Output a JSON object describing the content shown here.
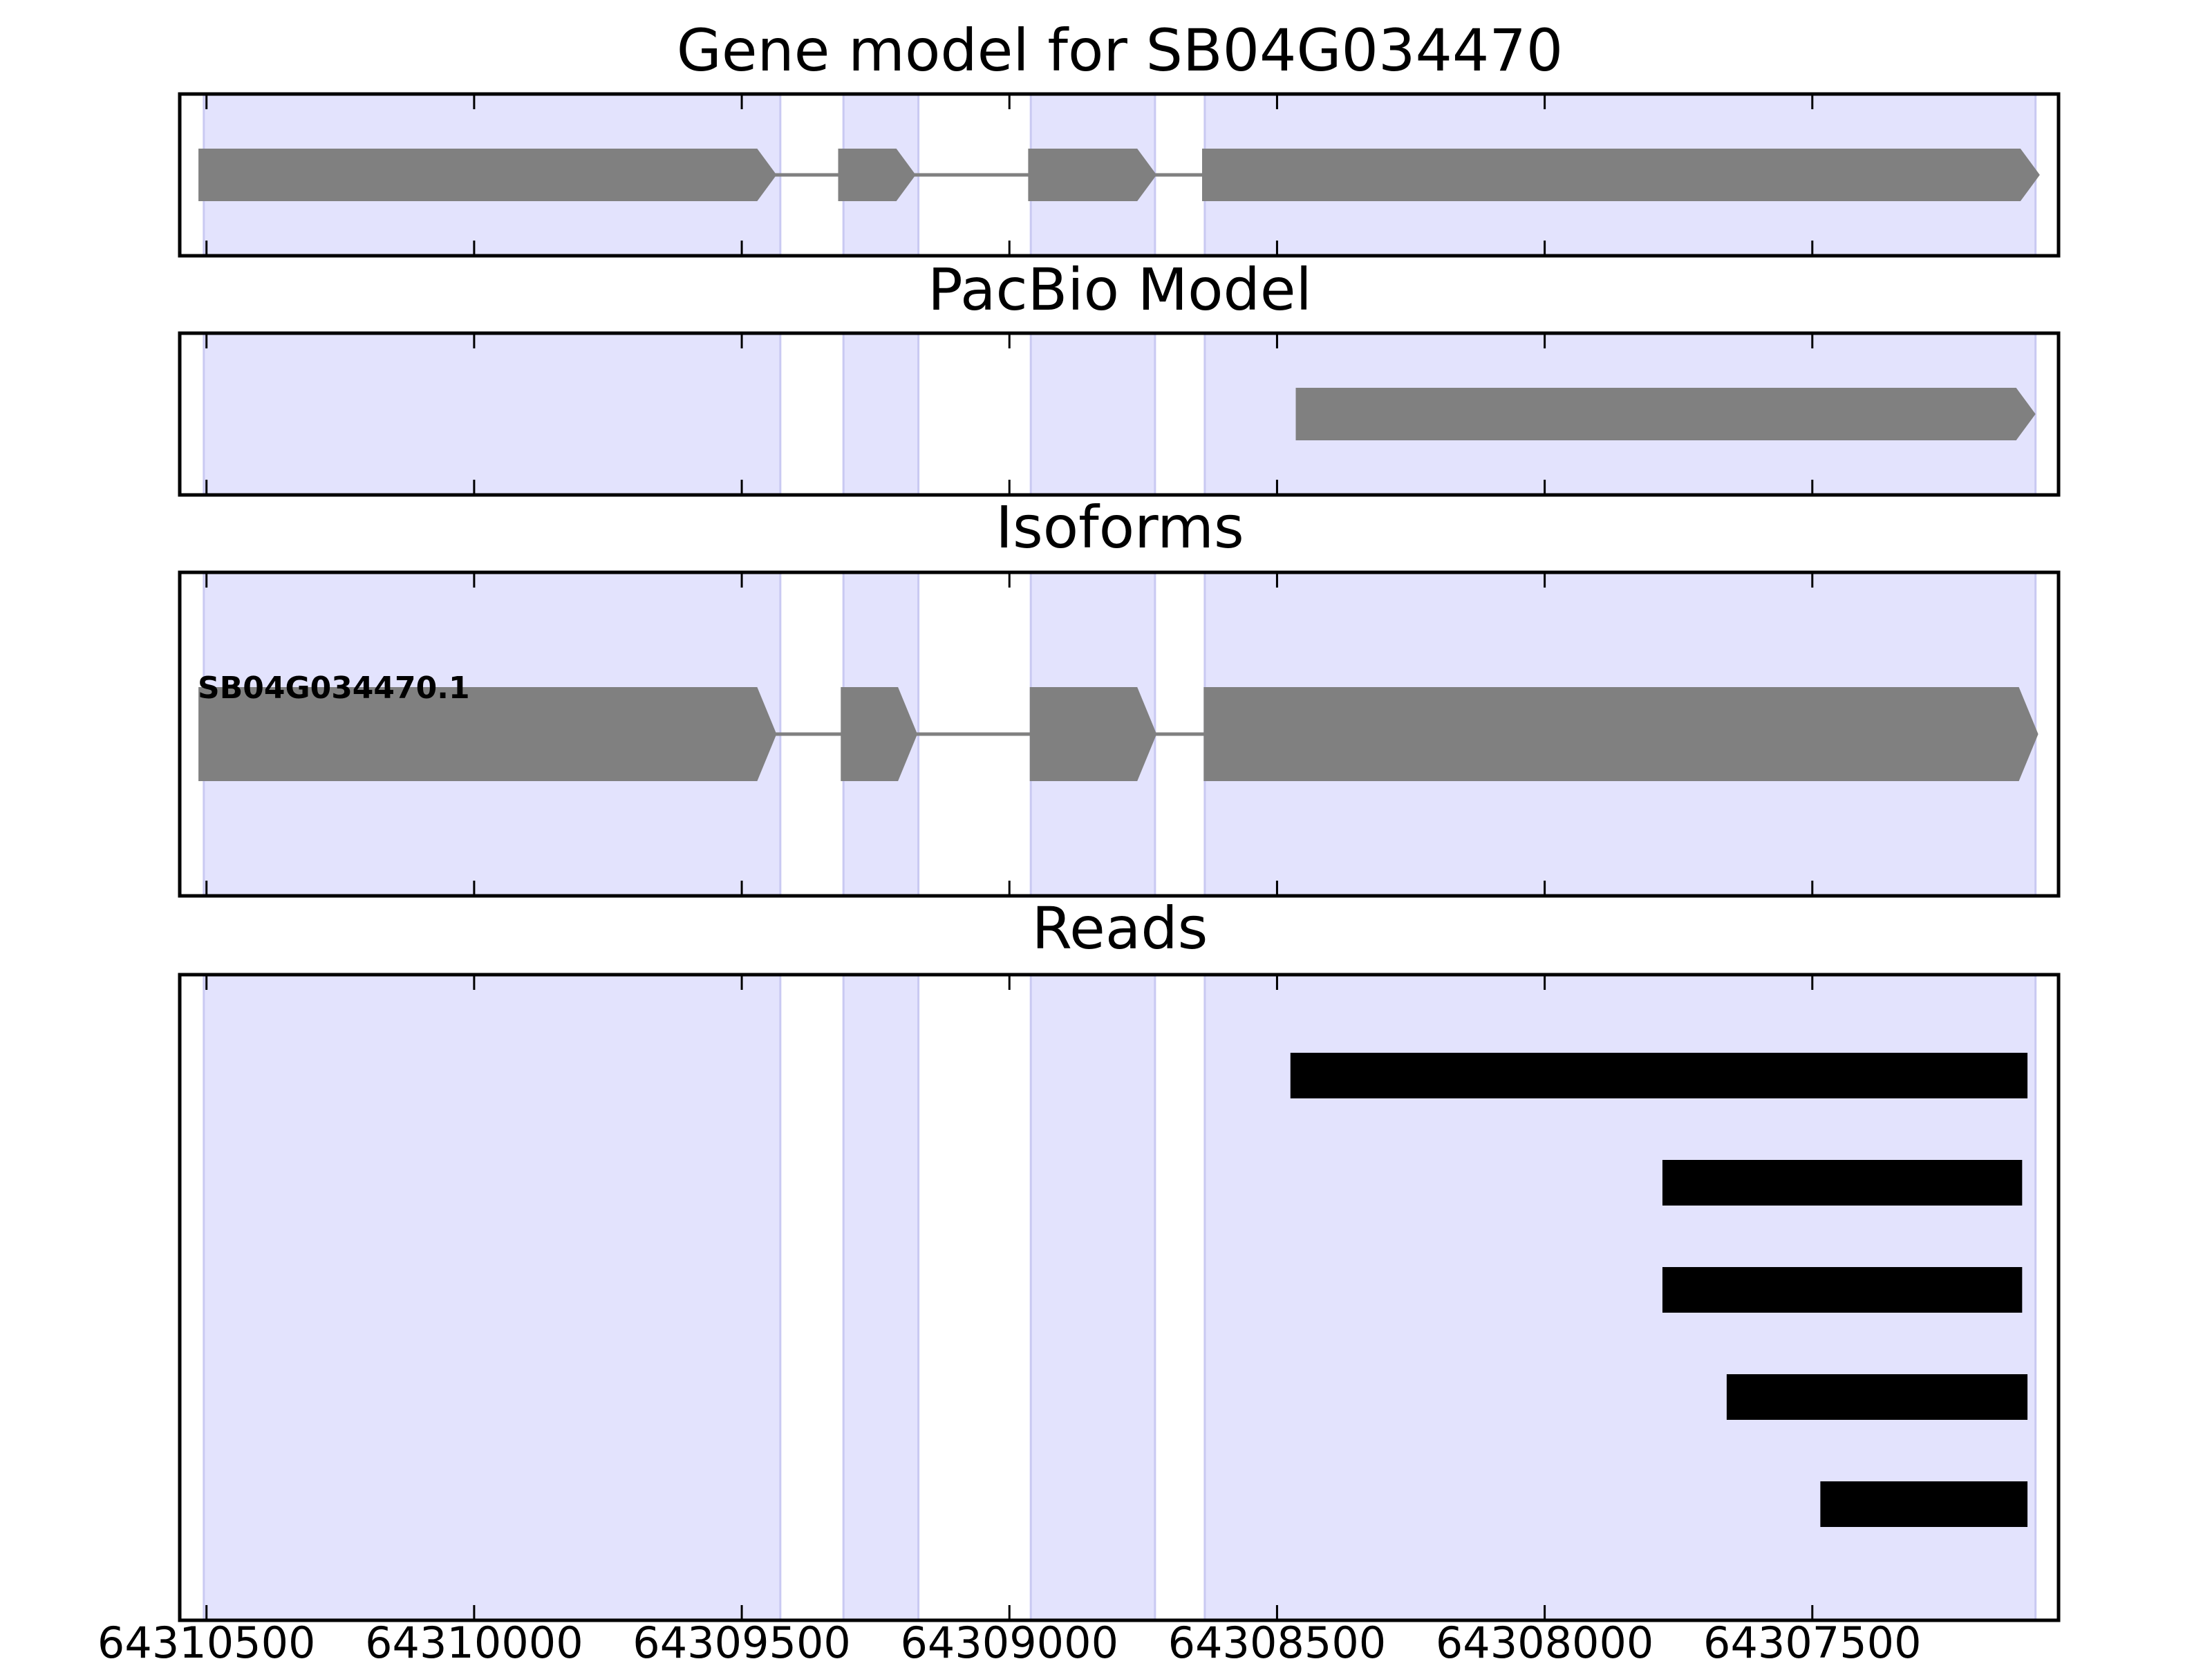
{
  "chart_data": {
    "type": "gene_track",
    "xlim": [
      64310550,
      64307040
    ],
    "x_axis_reversed": true,
    "x_ticks": [
      64310500,
      64310000,
      64309500,
      64309000,
      64308500,
      64308000,
      64307500
    ],
    "x_tick_labels": [
      "64310500",
      "64310000",
      "64309500",
      "64309000",
      "64308500",
      "64308000",
      "64307500"
    ],
    "exon_regions": [
      [
        64310505,
        64309428
      ],
      [
        64309310,
        64309170
      ],
      [
        64308960,
        64308728
      ],
      [
        64308635,
        64307083
      ]
    ],
    "colors": {
      "exon_shading": "#e3e3fd",
      "exon_shading_edge": "#c9c9f2",
      "feature": "#808080",
      "read": "#000000",
      "frame": "#000000"
    },
    "panels": [
      {
        "id": "gene-model",
        "title": "Gene model for SB04G034470",
        "intron_line": true,
        "exons": [
          [
            64310515,
            64309435
          ],
          [
            64309320,
            64309175
          ],
          [
            64308965,
            64308725
          ],
          [
            64308640,
            64307075
          ]
        ]
      },
      {
        "id": "pacbio-model",
        "title": "PacBio Model",
        "intron_line": false,
        "exons": [
          [
            64308465,
            64307083
          ]
        ]
      },
      {
        "id": "isoforms",
        "title": "Isoforms",
        "intron_line": true,
        "isoform_label": "SB04G034470.1",
        "exons": [
          [
            64310515,
            64309435
          ],
          [
            64309315,
            64309172
          ],
          [
            64308962,
            64308725
          ],
          [
            64308637,
            64307078
          ]
        ]
      },
      {
        "id": "reads",
        "title": "Reads",
        "reads": [
          [
            64308475,
            64307098
          ],
          [
            64307780,
            64307108
          ],
          [
            64307780,
            64307108
          ],
          [
            64307660,
            64307098
          ],
          [
            64307485,
            64307098
          ]
        ]
      }
    ]
  }
}
